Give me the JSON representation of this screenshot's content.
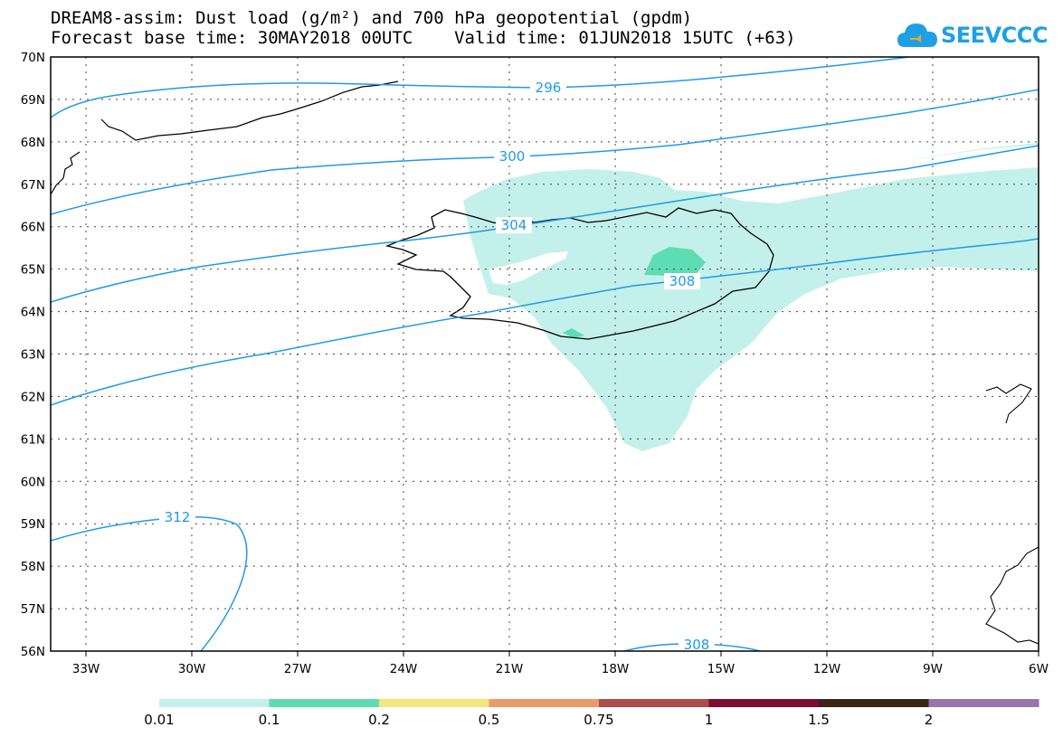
{
  "header": {
    "line1": "DREAM8-assim: Dust load (g/m²) and 700 hPa geopotential (gpdm)",
    "line2": "Forecast base time: 30MAY2018 00UTC    Valid time: 01JUN2018 15UTC (+63)"
  },
  "logo": {
    "text": "SEEVCCC",
    "color": "#1ea0e6"
  },
  "map": {
    "lon_range": [
      -34,
      -6
    ],
    "lat_range": [
      56,
      70
    ],
    "lon_ticks": [
      "33W",
      "30W",
      "27W",
      "24W",
      "21W",
      "18W",
      "15W",
      "12W",
      "9W",
      "6W"
    ],
    "lat_ticks": [
      "70N",
      "69N",
      "68N",
      "67N",
      "66N",
      "65N",
      "64N",
      "63N",
      "62N",
      "61N",
      "60N",
      "59N",
      "58N",
      "57N",
      "56N"
    ],
    "contour_color": "#1e9be6",
    "contour_labels": [
      "296",
      "300",
      "304",
      "308",
      "312",
      "308"
    ],
    "dust_colors": {
      "low": "#c4f0eb",
      "mid": "#5edcb4"
    }
  },
  "colorbar": {
    "labels": [
      "0.01",
      "0.1",
      "0.2",
      "0.5",
      "0.75",
      "1",
      "1.5",
      "2"
    ],
    "colors": [
      "#c4f0eb",
      "#5edcb4",
      "#f5e67a",
      "#eb9a6c",
      "#aa4d4b",
      "#7e0b33",
      "#392617",
      "#9a76a8"
    ]
  }
}
